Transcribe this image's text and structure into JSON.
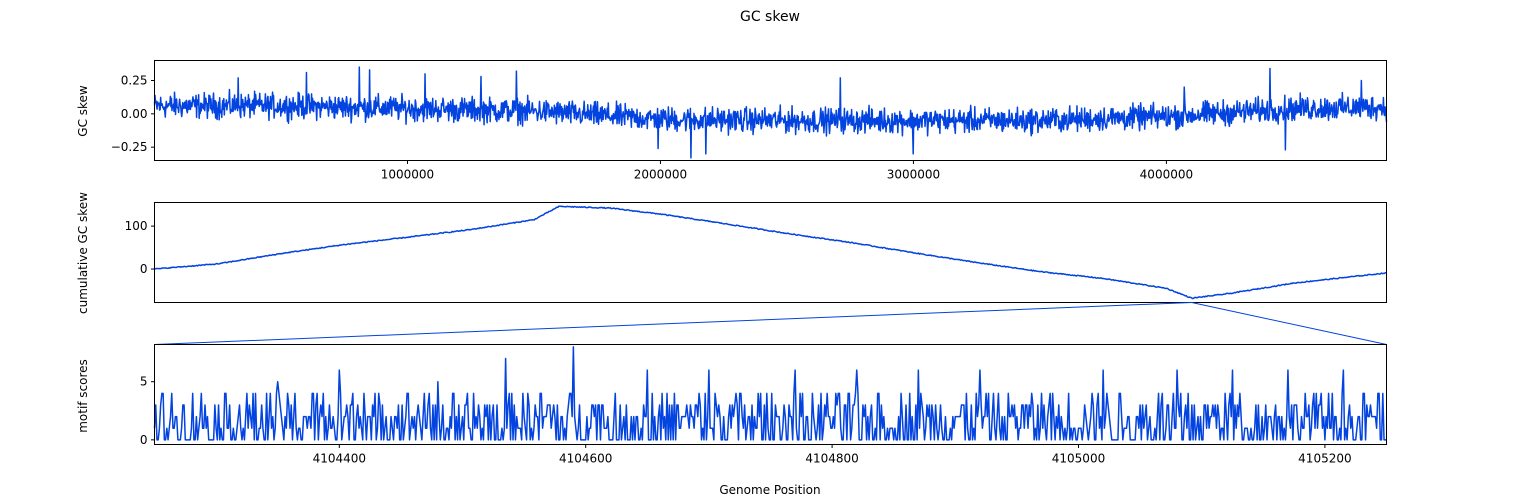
{
  "chart_data": [
    {
      "type": "line",
      "title": "GC skew",
      "ylabel": "GC skew",
      "xlabel": "",
      "xlim": [
        0,
        4870000
      ],
      "ylim": [
        -0.35,
        0.4
      ],
      "xticks": [
        {
          "value": 1000000,
          "label": "1000000"
        },
        {
          "value": 2000000,
          "label": "2000000"
        },
        {
          "value": 3000000,
          "label": "3000000"
        },
        {
          "value": 4000000,
          "label": "4000000"
        }
      ],
      "yticks": [
        {
          "value": 0.25,
          "label": "0.25"
        },
        {
          "value": 0.0,
          "label": "0.00"
        },
        {
          "value": -0.25,
          "label": "−0.25"
        }
      ],
      "color": "#0343df",
      "trend": [
        [
          0,
          0.06
        ],
        [
          500000,
          0.06
        ],
        [
          1000000,
          0.04
        ],
        [
          1500000,
          0.02
        ],
        [
          2000000,
          -0.04
        ],
        [
          2500000,
          -0.05
        ],
        [
          3000000,
          -0.05
        ],
        [
          3500000,
          -0.05
        ],
        [
          4000000,
          -0.02
        ],
        [
          4500000,
          0.04
        ],
        [
          4870000,
          0.05
        ]
      ],
      "spikes": [
        [
          330000,
          0.27
        ],
        [
          600000,
          0.31
        ],
        [
          810000,
          0.35
        ],
        [
          850000,
          0.33
        ],
        [
          1070000,
          0.3
        ],
        [
          1290000,
          0.28
        ],
        [
          1430000,
          0.32
        ],
        [
          1990000,
          -0.26
        ],
        [
          2120000,
          -0.33
        ],
        [
          2180000,
          -0.3
        ],
        [
          2710000,
          0.27
        ],
        [
          3000000,
          -0.3
        ],
        [
          4070000,
          0.2
        ],
        [
          4410000,
          0.34
        ],
        [
          4470000,
          -0.27
        ],
        [
          4770000,
          0.25
        ]
      ],
      "noise_amplitude": 0.07
    },
    {
      "type": "line",
      "ylabel": "cumulative GC skew",
      "xlabel": "",
      "xlim": [
        0,
        4870000
      ],
      "ylim": [
        -78,
        155
      ],
      "xticks": [],
      "yticks": [
        {
          "value": 100,
          "label": "100"
        },
        {
          "value": 0,
          "label": "0"
        }
      ],
      "color": "#0343df",
      "x": [
        0,
        250000,
        500000,
        750000,
        1000000,
        1250000,
        1500000,
        1600000,
        1800000,
        2000000,
        2250000,
        2500000,
        2750000,
        3000000,
        3250000,
        3500000,
        3750000,
        4000000,
        4100000,
        4250000,
        4500000,
        4870000
      ],
      "y": [
        0,
        12,
        36,
        57,
        74,
        92,
        115,
        146,
        142,
        128,
        106,
        83,
        62,
        38,
        15,
        -6,
        -22,
        -45,
        -68,
        -57,
        -33,
        -9
      ],
      "zoom_marker": 4100000
    },
    {
      "type": "line",
      "ylabel": "motif scores",
      "xlabel": "Genome Position",
      "xlim": [
        4104250,
        4105250
      ],
      "ylim": [
        -0.4,
        8.2
      ],
      "xticks": [
        {
          "value": 4104400,
          "label": "4104400"
        },
        {
          "value": 4104600,
          "label": "4104600"
        },
        {
          "value": 4104800,
          "label": "4104800"
        },
        {
          "value": 4105000,
          "label": "4105000"
        },
        {
          "value": 4105200,
          "label": "4105200"
        }
      ],
      "yticks": [
        {
          "value": 5,
          "label": "5"
        },
        {
          "value": 0,
          "label": "0"
        }
      ],
      "color": "#0343df",
      "peaks": [
        [
          4104350,
          5
        ],
        [
          4104400,
          6
        ],
        [
          4104420,
          4
        ],
        [
          4104480,
          5
        ],
        [
          4104535,
          7
        ],
        [
          4104590,
          8
        ],
        [
          4104650,
          6
        ],
        [
          4104700,
          6
        ],
        [
          4104770,
          6
        ],
        [
          4104820,
          6
        ],
        [
          4104870,
          6
        ],
        [
          4104920,
          6
        ],
        [
          4105020,
          6
        ],
        [
          4105080,
          6
        ],
        [
          4105125,
          6
        ],
        [
          4105170,
          6
        ],
        [
          4105215,
          6
        ]
      ]
    }
  ]
}
